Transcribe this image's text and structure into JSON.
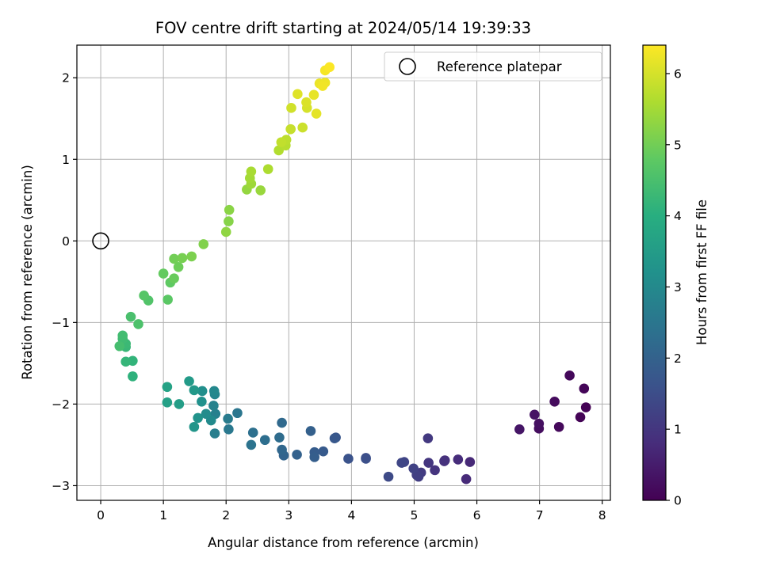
{
  "chart_data": {
    "type": "scatter",
    "title": "FOV centre drift starting at 2024/05/14 19:39:33",
    "xlabel": "Angular distance from reference (arcmin)",
    "ylabel": "Rotation from reference (arcmin)",
    "xlim": [
      -0.38,
      8.13
    ],
    "ylim": [
      -3.18,
      2.4
    ],
    "xticks": [
      0,
      1,
      2,
      3,
      4,
      5,
      6,
      7,
      8
    ],
    "yticks": [
      -3,
      -2,
      -1,
      0,
      1,
      2
    ],
    "xtick_labels": [
      "0",
      "1",
      "2",
      "3",
      "4",
      "5",
      "6",
      "7",
      "8"
    ],
    "ytick_labels": [
      "−3",
      "−2",
      "−1",
      "0",
      "1",
      "2"
    ],
    "grid": true,
    "legend": {
      "placement": "top-right",
      "entries": [
        "Reference platepar"
      ]
    },
    "colorbar": {
      "label": "Hours from first FF file",
      "min": 0,
      "max": 6.4,
      "ticks": [
        0,
        1,
        2,
        3,
        4,
        5,
        6
      ],
      "tick_labels": [
        "0",
        "1",
        "2",
        "3",
        "4",
        "5",
        "6"
      ],
      "colormap": "viridis"
    },
    "reference_point": {
      "label": "Reference platepar",
      "x": 0,
      "y": 0
    },
    "series": [
      {
        "name": "FOV centre drift",
        "points": [
          [
            7.74,
            -2.04,
            0.02
          ],
          [
            7.65,
            -2.16,
            0.05
          ],
          [
            7.71,
            -1.81,
            0.08
          ],
          [
            7.48,
            -1.65,
            0.12
          ],
          [
            7.31,
            -2.28,
            0.15
          ],
          [
            7.24,
            -1.97,
            0.19
          ],
          [
            6.99,
            -2.3,
            0.23
          ],
          [
            6.99,
            -2.24,
            0.27
          ],
          [
            6.92,
            -2.13,
            0.31
          ],
          [
            6.68,
            -2.31,
            0.36
          ],
          [
            5.89,
            -2.71,
            0.72
          ],
          [
            5.83,
            -2.92,
            0.76
          ],
          [
            5.7,
            -2.68,
            0.81
          ],
          [
            5.49,
            -2.69,
            0.86
          ],
          [
            5.48,
            -2.7,
            0.9
          ],
          [
            5.33,
            -2.81,
            0.95
          ],
          [
            5.23,
            -2.72,
            1.0
          ],
          [
            5.22,
            -2.42,
            1.05
          ],
          [
            5.11,
            -2.84,
            1.1
          ],
          [
            5.07,
            -2.89,
            1.15
          ],
          [
            5.04,
            -2.87,
            1.2
          ],
          [
            4.99,
            -2.79,
            1.25
          ],
          [
            4.84,
            -2.71,
            1.3
          ],
          [
            4.8,
            -2.72,
            1.35
          ],
          [
            4.59,
            -2.89,
            1.42
          ],
          [
            4.23,
            -2.66,
            1.5
          ],
          [
            4.23,
            -2.67,
            1.55
          ],
          [
            3.95,
            -2.67,
            1.62
          ],
          [
            3.75,
            -2.41,
            1.7
          ],
          [
            3.73,
            -2.42,
            1.75
          ],
          [
            3.55,
            -2.58,
            1.8
          ],
          [
            3.41,
            -2.59,
            1.85
          ],
          [
            3.41,
            -2.65,
            1.9
          ],
          [
            3.35,
            -2.33,
            1.95
          ],
          [
            3.13,
            -2.62,
            2.0
          ],
          [
            2.92,
            -2.63,
            2.06
          ],
          [
            2.89,
            -2.56,
            2.12
          ],
          [
            2.89,
            -2.23,
            2.18
          ],
          [
            2.85,
            -2.41,
            2.24
          ],
          [
            2.62,
            -2.44,
            2.3
          ],
          [
            2.43,
            -2.35,
            2.36
          ],
          [
            2.4,
            -2.5,
            2.42
          ],
          [
            2.18,
            -2.11,
            2.5
          ],
          [
            2.04,
            -2.31,
            2.56
          ],
          [
            2.03,
            -2.18,
            2.62
          ],
          [
            1.82,
            -2.36,
            2.7
          ],
          [
            1.83,
            -2.12,
            2.76
          ],
          [
            1.8,
            -2.02,
            2.82
          ],
          [
            1.82,
            -1.88,
            2.9
          ],
          [
            1.81,
            -1.84,
            2.96
          ],
          [
            1.76,
            -2.2,
            3.02
          ],
          [
            1.68,
            -2.12,
            3.08
          ],
          [
            1.62,
            -1.84,
            3.14
          ],
          [
            1.61,
            -1.97,
            3.2
          ],
          [
            1.55,
            -2.17,
            3.26
          ],
          [
            1.49,
            -2.28,
            3.32
          ],
          [
            1.49,
            -1.83,
            3.38
          ],
          [
            1.41,
            -1.72,
            3.44
          ],
          [
            1.25,
            -2.0,
            3.52
          ],
          [
            1.06,
            -1.98,
            3.6
          ],
          [
            1.06,
            -1.79,
            3.68
          ],
          [
            0.51,
            -1.66,
            4.1
          ],
          [
            0.51,
            -1.47,
            4.15
          ],
          [
            0.4,
            -1.48,
            4.2
          ],
          [
            0.4,
            -1.3,
            4.25
          ],
          [
            0.4,
            -1.26,
            4.3
          ],
          [
            0.35,
            -1.2,
            4.35
          ],
          [
            0.35,
            -1.16,
            4.4
          ],
          [
            0.3,
            -1.29,
            4.45
          ],
          [
            0.48,
            -0.93,
            4.5
          ],
          [
            0.6,
            -1.02,
            4.55
          ],
          [
            0.76,
            -0.73,
            4.62
          ],
          [
            0.69,
            -0.67,
            4.68
          ],
          [
            1.07,
            -0.72,
            4.74
          ],
          [
            1.11,
            -0.51,
            4.8
          ],
          [
            1.0,
            -0.4,
            4.85
          ],
          [
            1.17,
            -0.46,
            4.9
          ],
          [
            1.24,
            -0.32,
            4.95
          ],
          [
            1.17,
            -0.22,
            5.0
          ],
          [
            1.3,
            -0.21,
            5.05
          ],
          [
            1.45,
            -0.19,
            5.1
          ],
          [
            1.64,
            -0.04,
            5.15
          ],
          [
            2.04,
            0.24,
            5.2
          ],
          [
            2.05,
            0.38,
            5.25
          ],
          [
            2.0,
            0.11,
            5.3
          ],
          [
            2.33,
            0.63,
            5.35
          ],
          [
            2.55,
            0.62,
            5.4
          ],
          [
            2.4,
            0.7,
            5.45
          ],
          [
            2.38,
            0.77,
            5.5
          ],
          [
            2.4,
            0.85,
            5.55
          ],
          [
            2.67,
            0.88,
            5.6
          ],
          [
            2.84,
            1.11,
            5.65
          ],
          [
            2.95,
            1.17,
            5.7
          ],
          [
            2.96,
            1.24,
            5.75
          ],
          [
            2.88,
            1.21,
            5.8
          ],
          [
            3.03,
            1.37,
            5.85
          ],
          [
            3.22,
            1.39,
            5.9
          ],
          [
            3.04,
            1.63,
            5.95
          ],
          [
            3.29,
            1.63,
            6.0
          ],
          [
            3.28,
            1.7,
            6.05
          ],
          [
            3.14,
            1.8,
            6.1
          ],
          [
            3.44,
            1.56,
            6.15
          ],
          [
            3.4,
            1.79,
            6.18
          ],
          [
            3.49,
            1.93,
            6.22
          ],
          [
            3.58,
            1.94,
            6.25
          ],
          [
            3.54,
            1.9,
            6.28
          ],
          [
            3.58,
            2.09,
            6.32
          ],
          [
            3.65,
            2.13,
            6.38
          ]
        ]
      }
    ]
  }
}
